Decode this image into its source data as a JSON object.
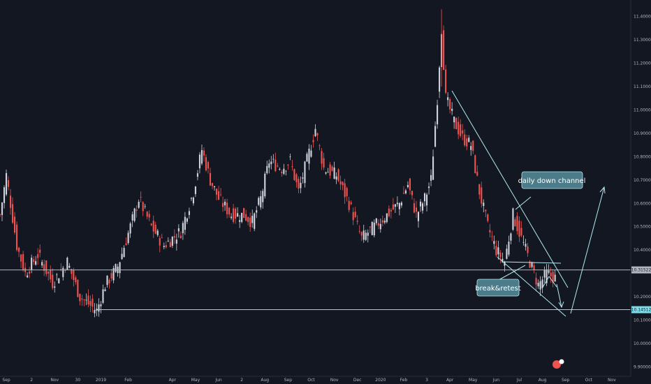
{
  "chart_data": {
    "type": "candlestick",
    "y_axis": {
      "range": [
        9.86,
        11.47
      ],
      "ticks": [
        "11.40000",
        "11.30000",
        "11.20000",
        "11.10000",
        "11.00000",
        "10.90000",
        "10.80000",
        "10.70000",
        "10.60000",
        "10.50000",
        "10.40000",
        "10.20000",
        "10.10000",
        "10.00000",
        "9.90000"
      ],
      "tick_values": [
        11.4,
        11.3,
        11.2,
        11.1,
        11.0,
        10.9,
        10.8,
        10.7,
        10.6,
        10.5,
        10.4,
        10.2,
        10.1,
        10.0,
        9.9
      ]
    },
    "x_axis": {
      "ticks": [
        "Sep",
        "2",
        "Nov",
        "30",
        "2019",
        "Feb",
        "Apr",
        "May",
        "Jun",
        "2",
        "Aug",
        "Sep",
        "Oct",
        "Nov",
        "Dec",
        "2020",
        "Feb",
        "3",
        "Apr",
        "May",
        "Jun",
        "Jul",
        "Aug",
        "Sep",
        "Oct",
        "Nov"
      ],
      "tick_index": [
        3,
        15,
        26,
        37,
        48,
        61,
        82,
        93,
        104,
        115,
        126,
        137,
        148,
        159,
        170,
        181,
        192,
        203,
        214,
        225,
        236,
        247,
        258,
        269,
        280,
        291
      ]
    },
    "price_series": [
      {
        "index": 0,
        "close": 10.55
      },
      {
        "index": 3,
        "close": 10.72
      },
      {
        "index": 8,
        "close": 10.42
      },
      {
        "index": 12,
        "close": 10.3
      },
      {
        "index": 18,
        "close": 10.38
      },
      {
        "index": 25,
        "close": 10.26
      },
      {
        "index": 32,
        "close": 10.35
      },
      {
        "index": 38,
        "close": 10.2
      },
      {
        "index": 46,
        "close": 10.14
      },
      {
        "index": 50,
        "close": 10.25
      },
      {
        "index": 56,
        "close": 10.33
      },
      {
        "index": 62,
        "close": 10.5
      },
      {
        "index": 66,
        "close": 10.62
      },
      {
        "index": 72,
        "close": 10.5
      },
      {
        "index": 78,
        "close": 10.42
      },
      {
        "index": 86,
        "close": 10.48
      },
      {
        "index": 92,
        "close": 10.65
      },
      {
        "index": 96,
        "close": 10.83
      },
      {
        "index": 100,
        "close": 10.7
      },
      {
        "index": 104,
        "close": 10.62
      },
      {
        "index": 110,
        "close": 10.55
      },
      {
        "index": 116,
        "close": 10.55
      },
      {
        "index": 120,
        "close": 10.52
      },
      {
        "index": 124,
        "close": 10.62
      },
      {
        "index": 128,
        "close": 10.78
      },
      {
        "index": 134,
        "close": 10.75
      },
      {
        "index": 138,
        "close": 10.78
      },
      {
        "index": 142,
        "close": 10.65
      },
      {
        "index": 148,
        "close": 10.85
      },
      {
        "index": 150,
        "close": 10.92
      },
      {
        "index": 154,
        "close": 10.75
      },
      {
        "index": 160,
        "close": 10.72
      },
      {
        "index": 166,
        "close": 10.6
      },
      {
        "index": 172,
        "close": 10.45
      },
      {
        "index": 178,
        "close": 10.5
      },
      {
        "index": 184,
        "close": 10.55
      },
      {
        "index": 190,
        "close": 10.6
      },
      {
        "index": 194,
        "close": 10.68
      },
      {
        "index": 198,
        "close": 10.55
      },
      {
        "index": 202,
        "close": 10.62
      },
      {
        "index": 205,
        "close": 10.7
      },
      {
        "index": 208,
        "close": 11.05
      },
      {
        "index": 210,
        "close": 11.35
      },
      {
        "index": 212,
        "close": 11.05
      },
      {
        "index": 216,
        "close": 10.95
      },
      {
        "index": 220,
        "close": 10.88
      },
      {
        "index": 224,
        "close": 10.85
      },
      {
        "index": 228,
        "close": 10.65
      },
      {
        "index": 232,
        "close": 10.5
      },
      {
        "index": 236,
        "close": 10.4
      },
      {
        "index": 240,
        "close": 10.35
      },
      {
        "index": 244,
        "close": 10.55
      },
      {
        "index": 248,
        "close": 10.45
      },
      {
        "index": 252,
        "close": 10.35
      },
      {
        "index": 256,
        "close": 10.25
      },
      {
        "index": 260,
        "close": 10.3
      },
      {
        "index": 264,
        "close": 10.28
      }
    ],
    "horizontal_levels": [
      {
        "value": 10.31522,
        "label": "10.31522",
        "color": "#b2b5be"
      },
      {
        "value": 10.14512,
        "label": "10.14512",
        "color": "#80deea"
      }
    ],
    "annotations": [
      {
        "text": "daily down channel"
      },
      {
        "text": "break&retest"
      }
    ],
    "colors": {
      "background": "#131722",
      "up": "#d1d4dc",
      "down": "#ef5350",
      "drawing": "#b2ebf2",
      "callout": "#4c7c8a"
    },
    "grid": false
  }
}
